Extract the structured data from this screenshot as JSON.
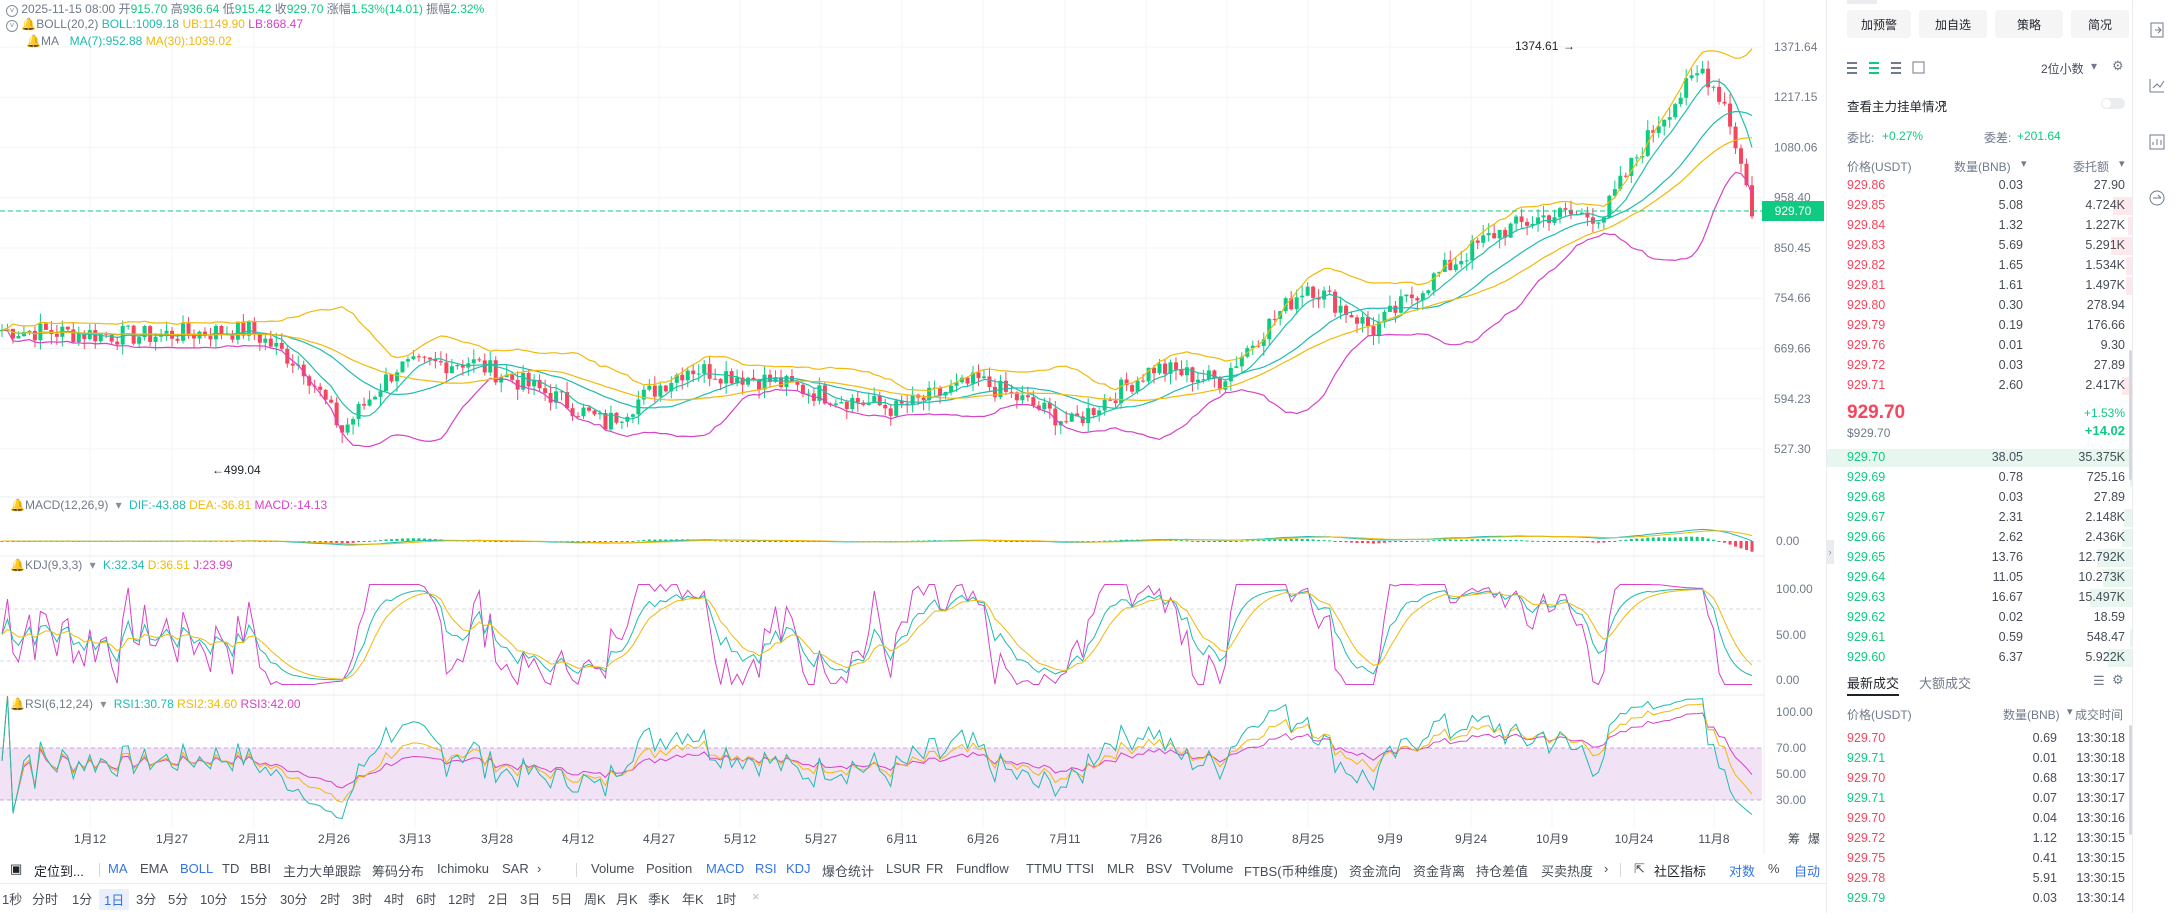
{
  "header": {
    "date": "2025-11-15 08:00",
    "open_label": "开",
    "open": "915.70",
    "high_label": "高",
    "high": "936.64",
    "low_label": "低",
    "low": "915.42",
    "close_label": "收",
    "close": "929.70",
    "change_label": "涨幅",
    "change": "1.53%(14.01)",
    "amp_label": "振幅",
    "amp": "2.32%"
  },
  "indicators": {
    "boll": {
      "name": "BOLL(20,2)",
      "boll": "BOLL:1009.18",
      "ub": "UB:1149.90",
      "lb": "LB:868.47"
    },
    "ma": {
      "name": "MA",
      "ma7": "MA(7):952.88",
      "ma30": "MA(30):1039.02"
    },
    "macd": {
      "name": "MACD(12,26,9)",
      "dif": "DIF:-43.88",
      "dea": "DEA:-36.81",
      "macd": "MACD:-14.13"
    },
    "kdj": {
      "name": "KDJ(9,3,3)",
      "k": "K:32.34",
      "d": "D:36.51",
      "j": "J:23.99"
    },
    "rsi": {
      "name": "RSI(6,12,24)",
      "r1": "RSI1:30.78",
      "r2": "RSI2:34.60",
      "r3": "RSI3:42.00"
    }
  },
  "price_axis": [
    "1371.64",
    "1217.15",
    "1080.06",
    "958.40",
    "850.45",
    "754.66",
    "669.66",
    "594.23",
    "527.30"
  ],
  "price_marker": "929.70",
  "annotations": {
    "high": "1374.61",
    "low": "499.04"
  },
  "macd_axis": [
    "0.00"
  ],
  "kdj_axis": [
    "100.00",
    "50.00",
    "0.00"
  ],
  "rsi_axis": [
    "100.00",
    "70.00",
    "50.00",
    "30.00"
  ],
  "time_axis": [
    "1月12",
    "1月27",
    "2月11",
    "2月26",
    "3月13",
    "3月28",
    "4月12",
    "4月27",
    "5月12",
    "5月27",
    "6月11",
    "6月26",
    "7月11",
    "7月26",
    "8月10",
    "8月25",
    "9月9",
    "9月24",
    "10月9",
    "10月24",
    "11月8"
  ],
  "time_axis_right": "筹",
  "time_axis_right2": "爆",
  "toolbar1": {
    "locate": "定位到...",
    "main_indicators": [
      "MA",
      "EMA",
      "BOLL",
      "TD",
      "BBI",
      "主力大单跟踪",
      "筹码分布",
      "Ichimoku",
      "SAR"
    ],
    "sub_indicators": [
      "Volume",
      "Position",
      "MACD",
      "RSI",
      "KDJ",
      "爆仓统计",
      "LSUR",
      "FR",
      "Fundflow",
      "TTMU",
      "TTSI",
      "MLR",
      "BSV",
      "TVolume",
      "FTBS(币种维度)",
      "资金流向",
      "资金背离",
      "持仓差值",
      "买卖热度"
    ],
    "community": "社区指标",
    "log": "对数",
    "pct": "%",
    "auto": "自动"
  },
  "toolbar2": {
    "intervals": [
      "1秒",
      "分时",
      "1分",
      "1日",
      "3分",
      "5分",
      "10分",
      "15分",
      "30分",
      "2时",
      "3时",
      "4时",
      "6时",
      "12时",
      "2日",
      "3日",
      "5日",
      "周K",
      "月K",
      "季K",
      "年K",
      "1时"
    ],
    "active": "1日",
    "close": "×"
  },
  "right_panel": {
    "buttons": [
      "加预警",
      "加自选",
      "策略",
      "简况"
    ],
    "decimals": "2位小数",
    "main_force": "查看主力挂单情况",
    "ratio_label": "委比:",
    "ratio": "+0.27%",
    "diff_label": "委差:",
    "diff": "+201.64",
    "col_price": "价格(USDT)",
    "col_qty": "数量(BNB)",
    "col_total": "委托额",
    "asks": [
      {
        "p": "929.86",
        "q": "0.03",
        "t": "27.90",
        "w": 0.0
      },
      {
        "p": "929.85",
        "q": "5.08",
        "t": "4.724K",
        "w": 0.3
      },
      {
        "p": "929.84",
        "q": "1.32",
        "t": "1.227K",
        "w": 0.08
      },
      {
        "p": "929.83",
        "q": "5.69",
        "t": "5.291K",
        "w": 0.34
      },
      {
        "p": "929.82",
        "q": "1.65",
        "t": "1.534K",
        "w": 0.1
      },
      {
        "p": "929.81",
        "q": "1.61",
        "t": "1.497K",
        "w": 0.1
      },
      {
        "p": "929.80",
        "q": "0.30",
        "t": "278.94",
        "w": 0.02
      },
      {
        "p": "929.79",
        "q": "0.19",
        "t": "176.66",
        "w": 0.01
      },
      {
        "p": "929.76",
        "q": "0.01",
        "t": "9.30",
        "w": 0.0
      },
      {
        "p": "929.72",
        "q": "0.03",
        "t": "27.89",
        "w": 0.0
      },
      {
        "p": "929.71",
        "q": "2.60",
        "t": "2.417K",
        "w": 0.16
      }
    ],
    "last_price": "929.70",
    "last_usd": "$929.70",
    "last_change_pct": "+1.53%",
    "last_change": "+14.02",
    "bids": [
      {
        "p": "929.70",
        "q": "38.05",
        "t": "35.375K",
        "w": 1.0
      },
      {
        "p": "929.69",
        "q": "0.78",
        "t": "725.16",
        "w": 0.05
      },
      {
        "p": "929.68",
        "q": "0.03",
        "t": "27.89",
        "w": 0.0
      },
      {
        "p": "929.67",
        "q": "2.31",
        "t": "2.148K",
        "w": 0.14
      },
      {
        "p": "929.66",
        "q": "2.62",
        "t": "2.436K",
        "w": 0.16
      },
      {
        "p": "929.65",
        "q": "13.76",
        "t": "12.792K",
        "w": 0.55
      },
      {
        "p": "929.64",
        "q": "11.05",
        "t": "10.273K",
        "w": 0.45
      },
      {
        "p": "929.63",
        "q": "16.67",
        "t": "15.497K",
        "w": 0.65
      },
      {
        "p": "929.62",
        "q": "0.02",
        "t": "18.59",
        "w": 0.0
      },
      {
        "p": "929.61",
        "q": "0.59",
        "t": "548.47",
        "w": 0.04
      },
      {
        "p": "929.60",
        "q": "6.37",
        "t": "5.922K",
        "w": 0.38
      }
    ],
    "trades_tab1": "最新成交",
    "trades_tab2": "大额成交",
    "trades_col_price": "价格(USDT)",
    "trades_col_qty": "数量(BNB)",
    "trades_col_time": "成交时间",
    "trades": [
      {
        "p": "929.70",
        "q": "0.69",
        "t": "13:30:18",
        "side": "sell"
      },
      {
        "p": "929.71",
        "q": "0.01",
        "t": "13:30:18",
        "side": "buy"
      },
      {
        "p": "929.70",
        "q": "0.68",
        "t": "13:30:17",
        "side": "sell"
      },
      {
        "p": "929.71",
        "q": "0.07",
        "t": "13:30:17",
        "side": "buy"
      },
      {
        "p": "929.70",
        "q": "0.04",
        "t": "13:30:16",
        "side": "sell"
      },
      {
        "p": "929.72",
        "q": "1.12",
        "t": "13:30:15",
        "side": "sell"
      },
      {
        "p": "929.75",
        "q": "0.41",
        "t": "13:30:15",
        "side": "sell"
      },
      {
        "p": "929.78",
        "q": "5.91",
        "t": "13:30:15",
        "side": "sell"
      },
      {
        "p": "929.79",
        "q": "0.03",
        "t": "13:30:14",
        "side": "buy"
      }
    ]
  },
  "colors": {
    "up": "#0ecb81",
    "down": "#f6465d",
    "ub": "#f0b90b",
    "lb": "#d742c8",
    "mid": "#1fbab0",
    "accent": "#3375e0"
  },
  "icons": [
    "alarm-icon",
    "eye-icon",
    "chevron-down-icon",
    "gear-icon",
    "toggle-icon",
    "orderbook-both-icon",
    "orderbook-bids-icon",
    "orderbook-asks-icon",
    "layout-icon",
    "calendar-icon",
    "chevron-right-icon",
    "community-icon",
    "close-icon",
    "rail-share-icon",
    "rail-chart-icon",
    "rail-depth-icon",
    "rail-trade-icon",
    "rail-settings-icon"
  ]
}
